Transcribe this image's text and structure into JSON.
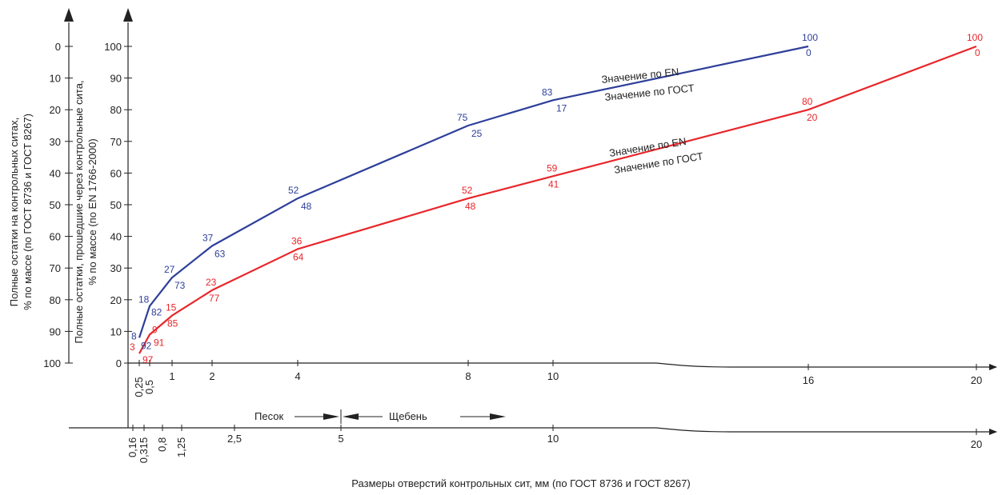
{
  "chart_data": {
    "type": "line",
    "colors": {
      "en_gost_blue": "#2e3f9a",
      "red": "#e8262a",
      "axis": "#222222"
    },
    "y_left": {
      "label_lines": [
        "Полные остатки на контрольных ситах,",
        "% по массе (по ГОСТ 8736 и ГОСТ 8267)"
      ],
      "ticks": [
        "0",
        "10",
        "20",
        "30",
        "40",
        "50",
        "60",
        "70",
        "80",
        "90",
        "100"
      ],
      "range": [
        100,
        0
      ]
    },
    "y_right": {
      "label_lines": [
        "Полные остатки, прошедшие через контрольные сита,",
        "% по массе (по EN 1766-2000)"
      ],
      "ticks": [
        "100",
        "90",
        "80",
        "70",
        "60",
        "50",
        "40",
        "30",
        "20",
        "10",
        "0"
      ],
      "range": [
        0,
        100
      ]
    },
    "x_top": {
      "ticks": [
        {
          "v": 0.25,
          "t": "0,25",
          "rot": true
        },
        {
          "v": 0.5,
          "t": "0,5",
          "rot": true
        },
        {
          "v": 1,
          "t": "1"
        },
        {
          "v": 2,
          "t": "2"
        },
        {
          "v": 4,
          "t": "4"
        },
        {
          "v": 8,
          "t": "8"
        },
        {
          "v": 10,
          "t": "10"
        },
        {
          "v": 16,
          "t": "16"
        },
        {
          "v": 20,
          "t": "20"
        }
      ]
    },
    "x_bottom": {
      "ticks": [
        {
          "v": 0.16,
          "t": "0,16",
          "rot": true
        },
        {
          "v": 0.315,
          "t": "0,315",
          "rot": true
        },
        {
          "v": 0.8,
          "t": "0,8",
          "rot": true
        },
        {
          "v": 1.25,
          "t": "1,25",
          "rot": true
        },
        {
          "v": 2.5,
          "t": "2,5"
        },
        {
          "v": 5,
          "t": "5"
        },
        {
          "v": 10,
          "t": "10"
        },
        {
          "v": 20,
          "t": "20"
        }
      ],
      "xlabel": "Размеры отверстий контрольных сит, мм (по ГОСТ 8736 и ГОСТ 8267)"
    },
    "zones": {
      "sand": "Песок",
      "gravel": "Щебень"
    },
    "series": [
      {
        "color": "blue",
        "label_en": "Значение по EN",
        "label_gost": "Значение по ГОСТ",
        "points": [
          {
            "x": 0.25,
            "en": 8,
            "gost": 92
          },
          {
            "x": 0.5,
            "en": 18,
            "gost": 82
          },
          {
            "x": 1,
            "en": 27,
            "gost": 73
          },
          {
            "x": 2,
            "en": 37,
            "gost": 63
          },
          {
            "x": 4,
            "en": 52,
            "gost": 48
          },
          {
            "x": 8,
            "en": 75,
            "gost": 25
          },
          {
            "x": 10,
            "en": 83,
            "gost": 17
          },
          {
            "x": 16,
            "en": 100,
            "gost": 0
          }
        ]
      },
      {
        "color": "red",
        "label_en": "Значение по EN",
        "label_gost": "Значение по ГОСТ",
        "points": [
          {
            "x": 0.25,
            "en": 3,
            "gost": 97
          },
          {
            "x": 0.5,
            "en": 9,
            "gost": 91
          },
          {
            "x": 1,
            "en": 15,
            "gost": 85
          },
          {
            "x": 2,
            "en": 23,
            "gost": 77
          },
          {
            "x": 4,
            "en": 36,
            "gost": 64
          },
          {
            "x": 8,
            "en": 52,
            "gost": 48
          },
          {
            "x": 10,
            "en": 59,
            "gost": 41
          },
          {
            "x": 16,
            "en": 80,
            "gost": 20
          },
          {
            "x": 20,
            "en": 100,
            "gost": 0
          }
        ]
      }
    ]
  }
}
